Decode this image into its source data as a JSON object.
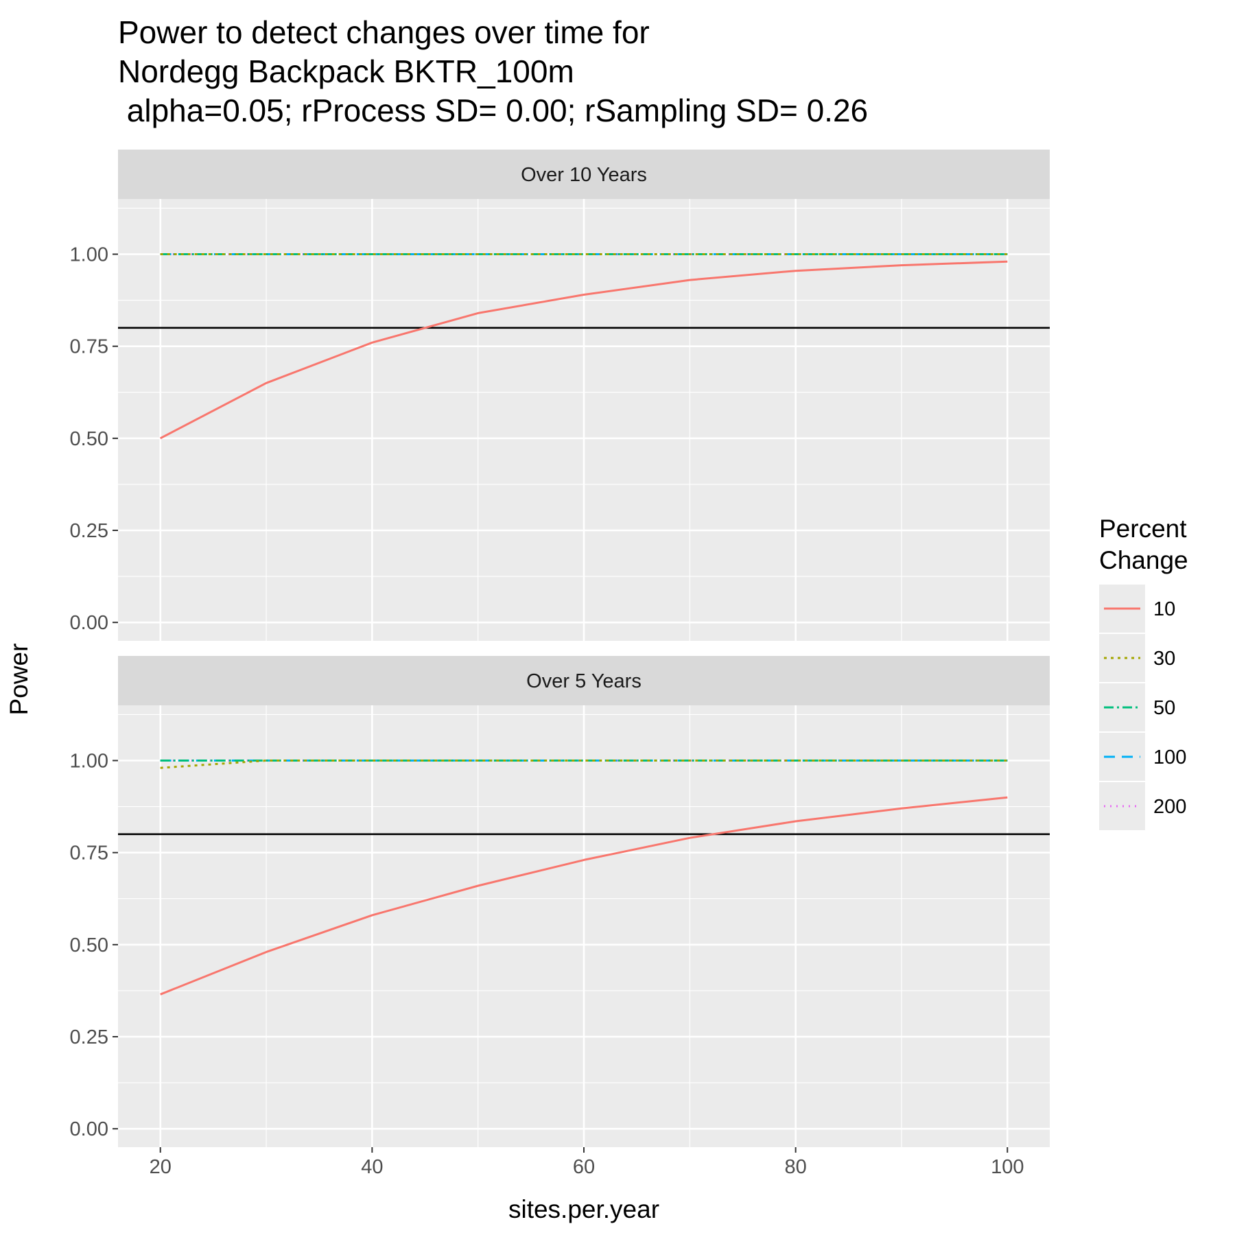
{
  "chart_data": {
    "type": "line",
    "title_lines": [
      "Power to detect changes over time for",
      "Nordegg Backpack  BKTR_100m",
      " alpha=0.05; rProcess SD= 0.00; rSampling SD= 0.26"
    ],
    "xlabel": "sites.per.year",
    "ylabel": "Power",
    "x": [
      20,
      30,
      40,
      50,
      60,
      70,
      80,
      90,
      100
    ],
    "xlim": [
      16,
      104
    ],
    "ylim": [
      -0.05,
      1.15
    ],
    "x_ticks": [
      "20",
      "40",
      "60",
      "80",
      "100"
    ],
    "y_ticks": [
      "0.00",
      "0.25",
      "0.50",
      "0.75",
      "1.00"
    ],
    "reference_line": 0.8,
    "legend": {
      "title_lines": [
        "Percent",
        "Change"
      ],
      "placement": "right"
    },
    "grid": true,
    "panels": [
      {
        "strip": "Over 10 Years",
        "series": [
          {
            "name": "10",
            "color": "#F8766D",
            "dash": "solid",
            "values": [
              0.5,
              0.65,
              0.76,
              0.84,
              0.89,
              0.93,
              0.955,
              0.97,
              0.98
            ]
          },
          {
            "name": "30",
            "color": "#A3A500",
            "dash": "dotted",
            "values": [
              1.0,
              1.0,
              1.0,
              1.0,
              1.0,
              1.0,
              1.0,
              1.0,
              1.0
            ]
          },
          {
            "name": "50",
            "color": "#00BF7D",
            "dash": "dashdot",
            "values": [
              1.0,
              1.0,
              1.0,
              1.0,
              1.0,
              1.0,
              1.0,
              1.0,
              1.0
            ]
          },
          {
            "name": "100",
            "color": "#00B0F6",
            "dash": "dashed",
            "values": [
              1.0,
              1.0,
              1.0,
              1.0,
              1.0,
              1.0,
              1.0,
              1.0,
              1.0
            ]
          },
          {
            "name": "200",
            "color": "#E76BF3",
            "dash": "dotted-fine",
            "values": [
              1.0,
              1.0,
              1.0,
              1.0,
              1.0,
              1.0,
              1.0,
              1.0,
              1.0
            ]
          }
        ]
      },
      {
        "strip": "Over 5 Years",
        "series": [
          {
            "name": "10",
            "color": "#F8766D",
            "dash": "solid",
            "values": [
              0.365,
              0.48,
              0.58,
              0.66,
              0.73,
              0.79,
              0.835,
              0.87,
              0.9
            ]
          },
          {
            "name": "30",
            "color": "#A3A500",
            "dash": "dotted",
            "values": [
              0.98,
              1.0,
              1.0,
              1.0,
              1.0,
              1.0,
              1.0,
              1.0,
              1.0
            ]
          },
          {
            "name": "50",
            "color": "#00BF7D",
            "dash": "dashdot",
            "values": [
              1.0,
              1.0,
              1.0,
              1.0,
              1.0,
              1.0,
              1.0,
              1.0,
              1.0
            ]
          },
          {
            "name": "100",
            "color": "#00B0F6",
            "dash": "dashed",
            "values": [
              1.0,
              1.0,
              1.0,
              1.0,
              1.0,
              1.0,
              1.0,
              1.0,
              1.0
            ]
          },
          {
            "name": "200",
            "color": "#E76BF3",
            "dash": "dotted-fine",
            "values": [
              1.0,
              1.0,
              1.0,
              1.0,
              1.0,
              1.0,
              1.0,
              1.0,
              1.0
            ]
          }
        ]
      }
    ]
  }
}
